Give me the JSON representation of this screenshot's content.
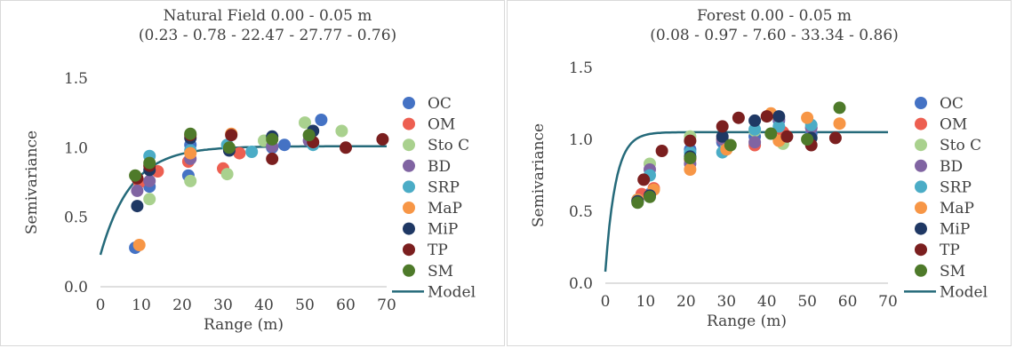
{
  "colors": {
    "OC": "#4472C4",
    "OM": "#ED5F51",
    "Sto C": "#A9D18E",
    "BD": "#8064A2",
    "SRP": "#4BACC6",
    "MaP": "#F79646",
    "MiP": "#1F3864",
    "TP": "#7B1F1F",
    "SM": "#4E7A2A",
    "Model": "#256A7A"
  },
  "chart_data": [
    {
      "type": "scatter",
      "title": "Natural Field 0.00 - 0.05 m",
      "subtitle": "(0.23 - 0.78 - 22.47 - 27.77 - 0.76)",
      "xlabel": "Range (m)",
      "ylabel": "Semivariance",
      "xlim": [
        0,
        70
      ],
      "ylim": [
        0,
        1.5
      ],
      "xticks": [
        "0",
        "10",
        "20",
        "30",
        "40",
        "50",
        "60",
        "70"
      ],
      "yticks": [
        "0.0",
        "0.5",
        "1.0",
        "1.5"
      ],
      "grid": false,
      "legend_position": "right",
      "series": [
        {
          "name": "OC",
          "x": [
            8.5,
            12,
            21.5,
            22,
            42,
            45,
            54
          ],
          "y": [
            0.28,
            0.72,
            0.8,
            1.02,
            1.0,
            1.02,
            1.2
          ]
        },
        {
          "name": "OM",
          "x": [
            9.5,
            14,
            21.5,
            30,
            34
          ],
          "y": [
            0.75,
            0.83,
            0.9,
            0.85,
            0.96
          ]
        },
        {
          "name": "Sto C",
          "x": [
            12,
            22,
            31,
            40,
            50,
            59
          ],
          "y": [
            0.63,
            0.76,
            0.81,
            1.05,
            1.18,
            1.12
          ]
        },
        {
          "name": "BD",
          "x": [
            9,
            12,
            22,
            42,
            51
          ],
          "y": [
            0.69,
            0.76,
            0.92,
            1.01,
            1.05
          ]
        },
        {
          "name": "SRP",
          "x": [
            12,
            22,
            31,
            37,
            52
          ],
          "y": [
            0.94,
            0.98,
            1.02,
            0.97,
            1.02
          ]
        },
        {
          "name": "MaP",
          "x": [
            9.5,
            22,
            32
          ],
          "y": [
            0.3,
            0.96,
            1.1
          ]
        },
        {
          "name": "MiP",
          "x": [
            9,
            12,
            22,
            31.5,
            42,
            52
          ],
          "y": [
            0.58,
            0.84,
            1.07,
            0.98,
            1.08,
            1.12
          ]
        },
        {
          "name": "TP",
          "x": [
            9,
            12,
            22,
            32,
            42,
            52,
            60,
            69
          ],
          "y": [
            0.78,
            0.87,
            1.09,
            1.09,
            0.92,
            1.04,
            1.0,
            1.06
          ]
        },
        {
          "name": "SM",
          "x": [
            8.5,
            12,
            22,
            31.5,
            42,
            51
          ],
          "y": [
            0.8,
            0.89,
            1.1,
            1.0,
            1.06,
            1.09
          ]
        }
      ],
      "model": {
        "name": "Model",
        "type": "exponential",
        "nugget": 0.23,
        "sill": 1.01,
        "range": 22.47
      }
    },
    {
      "type": "scatter",
      "title": "Forest 0.00 - 0.05 m",
      "subtitle": "(0.08 - 0.97 - 7.60 - 33.34 - 0.86)",
      "xlabel": "Range (m)",
      "ylabel": "Semivariance",
      "xlim": [
        0,
        70
      ],
      "ylim": [
        0,
        1.5
      ],
      "xticks": [
        "0",
        "10",
        "20",
        "30",
        "40",
        "50",
        "60",
        "70"
      ],
      "yticks": [
        "0.0",
        "0.5",
        "1.0",
        "1.5"
      ],
      "grid": false,
      "legend_position": "right",
      "series": [
        {
          "name": "OC",
          "x": [
            8,
            11,
            21,
            29,
            37,
            43,
            51
          ],
          "y": [
            0.57,
            0.62,
            0.93,
            0.98,
            1.02,
            1.13,
            1.04
          ]
        },
        {
          "name": "OM",
          "x": [
            9,
            12,
            21,
            29,
            37,
            44,
            51
          ],
          "y": [
            0.62,
            0.66,
            0.86,
            1.0,
            0.96,
            1.05,
            1.08
          ]
        },
        {
          "name": "Sto C",
          "x": [
            8,
            11,
            21,
            30,
            37,
            44,
            51
          ],
          "y": [
            0.58,
            0.83,
            1.02,
            0.95,
            1.06,
            0.97,
            1.01
          ]
        },
        {
          "name": "BD",
          "x": [
            8,
            11,
            21,
            29,
            37,
            43,
            51
          ],
          "y": [
            0.57,
            0.79,
            0.83,
            1.0,
            0.98,
            1.14,
            1.08
          ]
        },
        {
          "name": "SRP",
          "x": [
            8,
            11,
            21,
            29,
            37,
            43,
            51
          ],
          "y": [
            0.58,
            0.75,
            0.91,
            0.91,
            1.07,
            1.09,
            1.1
          ]
        },
        {
          "name": "MaP",
          "x": [
            8,
            12,
            21,
            30,
            41,
            43,
            50,
            58
          ],
          "y": [
            0.58,
            0.65,
            0.79,
            0.93,
            1.18,
            0.99,
            1.15,
            1.11
          ]
        },
        {
          "name": "MiP",
          "x": [
            8,
            11,
            21,
            29,
            37,
            43,
            51
          ],
          "y": [
            0.57,
            0.61,
            0.88,
            1.02,
            1.13,
            1.16,
            1.01
          ]
        },
        {
          "name": "TP",
          "x": [
            9.5,
            14,
            21,
            29,
            33,
            40,
            45,
            51,
            57
          ],
          "y": [
            0.72,
            0.92,
            0.99,
            1.09,
            1.15,
            1.16,
            1.02,
            0.96,
            1.01
          ]
        },
        {
          "name": "SM",
          "x": [
            8,
            11,
            21,
            31,
            41,
            50,
            58
          ],
          "y": [
            0.56,
            0.6,
            0.87,
            0.96,
            1.04,
            1.0,
            1.22
          ]
        }
      ],
      "model": {
        "name": "Model",
        "type": "exponential",
        "nugget": 0.08,
        "sill": 1.05,
        "range": 7.6
      }
    }
  ]
}
